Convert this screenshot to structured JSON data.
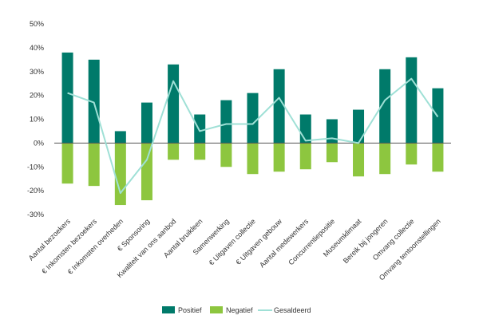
{
  "chart_data": {
    "type": "bar",
    "categories": [
      "Aantal bezoekers",
      "€ Inkomsten bezoekers",
      "€ Inkomsten overheden",
      "€ Sponsoring",
      "Kwaliteit van ons aanbod",
      "Aantal bruikleen",
      "Samenwerking",
      "€ Uitgaven collectie",
      "€ Uitgaven gebouw",
      "Aantal medewerkers",
      "Concurrentiepositie",
      "Museumklimaat",
      "Bereik bij jongeren",
      "Omvang collectie",
      "Omvang tentoonstellingen"
    ],
    "series": [
      {
        "name": "Positief",
        "type": "bar",
        "color": "#007a6a",
        "values": [
          38,
          35,
          5,
          17,
          33,
          12,
          18,
          21,
          31,
          12,
          10,
          14,
          31,
          36,
          23
        ]
      },
      {
        "name": "Negatief",
        "type": "bar",
        "color": "#8dc63f",
        "values": [
          -17,
          -18,
          -26,
          -24,
          -7,
          -7,
          -10,
          -13,
          -12,
          -11,
          -8,
          -14,
          -13,
          -9,
          -12
        ]
      },
      {
        "name": "Gesaldeerd",
        "type": "line",
        "color": "#9fe0d6",
        "values": [
          21,
          17,
          -21,
          -7,
          26,
          5,
          8,
          8,
          19,
          1,
          2,
          0,
          18,
          27,
          11
        ]
      }
    ],
    "ylim": [
      -30,
      50
    ],
    "yticks": [
      -30,
      -20,
      -10,
      0,
      10,
      20,
      30,
      40,
      50
    ],
    "ytick_labels": [
      "-30%",
      "-20%",
      "-10%",
      "0%",
      "10%",
      "20%",
      "30%",
      "40%",
      "50%"
    ],
    "grid": false,
    "legend": "bottom-center"
  }
}
